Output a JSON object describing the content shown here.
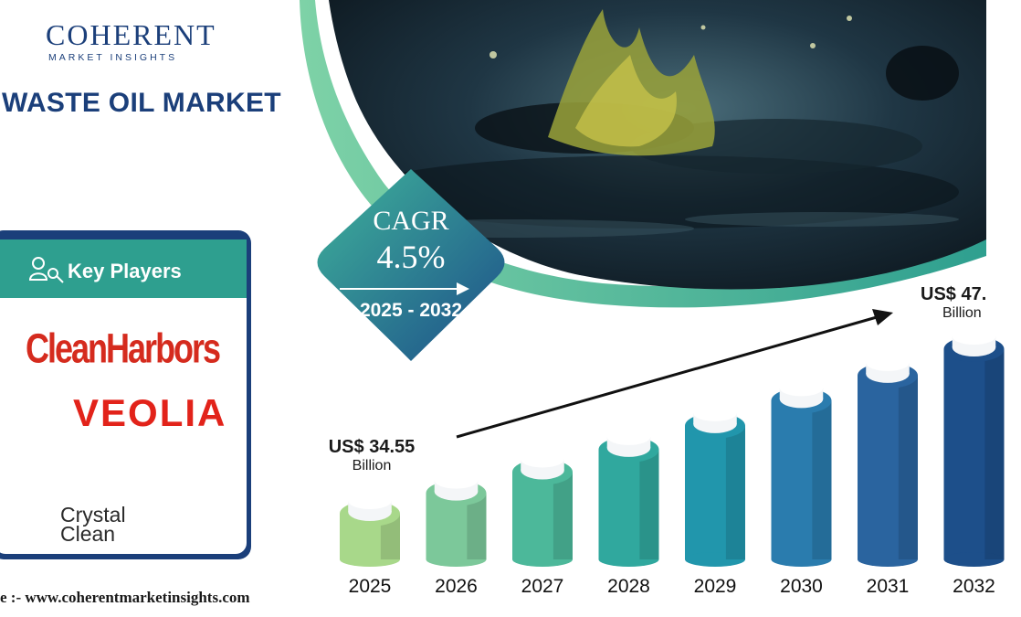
{
  "brand": {
    "name": "COHERENT",
    "tagline": "MARKET INSIGHTS"
  },
  "title": "WASTE OIL MARKET",
  "key_players": {
    "label": "Key Players",
    "companies": [
      {
        "name": "CleanHarbors",
        "logo": "cleanharbors-logo"
      },
      {
        "name": "VEOLIA",
        "logo": "veolia-logo"
      },
      {
        "name": "Crystal",
        "name2": "Clean",
        "logo": "crystal-clean-logo"
      }
    ]
  },
  "cagr": {
    "label": "CAGR",
    "value": "4.5%",
    "period": "2025 - 2032"
  },
  "callouts": {
    "start": {
      "value": "US$ 34.55",
      "unit": "Billion"
    },
    "end": {
      "value": "US$ 47.",
      "unit": "Billion"
    }
  },
  "chart_data": {
    "type": "bar",
    "categories": [
      "2025",
      "2026",
      "2027",
      "2028",
      "2029",
      "2030",
      "2031",
      "2032"
    ],
    "values": [
      34.55,
      36.1,
      37.7,
      39.4,
      41.2,
      43.1,
      45.0,
      47.0
    ],
    "colors": [
      "#a8d88a",
      "#7cc89a",
      "#4cb89a",
      "#30a89e",
      "#2196ac",
      "#2a7cae",
      "#2a649f",
      "#1d4f8a"
    ]
  },
  "source": "e :- www.coherentmarketinsights.com",
  "colors": {
    "navy": "#1b3f7a",
    "teal": "#2e9f8f",
    "red": "#d52b1e"
  }
}
